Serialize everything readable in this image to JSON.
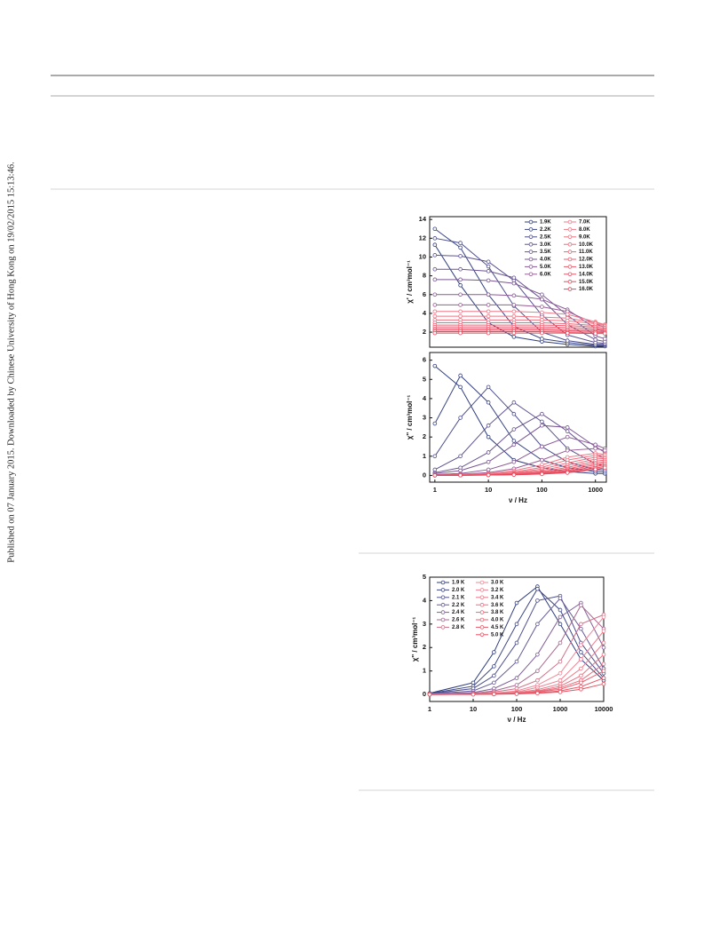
{
  "sidebar_note": "Published on 07 January 2015. Downloaded by Chinese University of Hong Kong on 19/02/2015 15:13:46.",
  "chart_data": [
    {
      "type": "line",
      "ylabel": "χ' / cm³mol⁻¹",
      "xscale": "log",
      "xlim": [
        0.8,
        1600
      ],
      "ylim": [
        0.4,
        14.3
      ],
      "yticks": [
        2,
        4,
        6,
        8,
        10,
        12,
        14
      ],
      "legend": "upper right",
      "x": [
        1,
        3,
        10,
        30,
        100,
        300,
        1000,
        1500
      ],
      "series": [
        {
          "name": "1.9K",
          "color": "#2e3c7e",
          "values": [
            11.3,
            7.0,
            3.0,
            1.5,
            1.0,
            0.7,
            0.5,
            0.5
          ]
        },
        {
          "name": "2.2K",
          "color": "#3a4585",
          "values": [
            13.0,
            11.0,
            6.0,
            2.6,
            1.3,
            0.9,
            0.6,
            0.6
          ]
        },
        {
          "name": "2.5K",
          "color": "#4a4d8c",
          "values": [
            12.0,
            11.5,
            9.0,
            4.8,
            2.0,
            1.1,
            0.7,
            0.7
          ]
        },
        {
          "name": "3.0K",
          "color": "#5a5290",
          "values": [
            10.2,
            10.1,
            9.5,
            7.5,
            3.8,
            1.7,
            0.9,
            0.8
          ]
        },
        {
          "name": "3.5K",
          "color": "#6a5592",
          "values": [
            8.7,
            8.7,
            8.5,
            7.8,
            5.5,
            2.8,
            1.2,
            1.0
          ]
        },
        {
          "name": "4.0K",
          "color": "#7a5794",
          "values": [
            7.6,
            7.6,
            7.5,
            7.2,
            6.0,
            3.8,
            1.6,
            1.3
          ]
        },
        {
          "name": "5.0K",
          "color": "#8a5a96",
          "values": [
            6.0,
            6.0,
            6.0,
            5.9,
            5.5,
            4.4,
            2.4,
            2.0
          ]
        },
        {
          "name": "6.0K",
          "color": "#9a5c96",
          "values": [
            4.9,
            4.9,
            4.9,
            4.9,
            4.7,
            4.2,
            2.9,
            2.5
          ]
        },
        {
          "name": "7.0K",
          "color": "#f07a8a",
          "values": [
            4.2,
            4.2,
            4.2,
            4.2,
            4.1,
            3.9,
            3.1,
            2.8
          ]
        },
        {
          "name": "8.0K",
          "color": "#f07585",
          "values": [
            3.7,
            3.7,
            3.7,
            3.7,
            3.6,
            3.5,
            3.0,
            2.8
          ]
        },
        {
          "name": "9.0K",
          "color": "#ef7080",
          "values": [
            3.3,
            3.3,
            3.3,
            3.3,
            3.3,
            3.2,
            2.9,
            2.7
          ]
        },
        {
          "name": "10.0K",
          "color": "#ee6a7b",
          "values": [
            3.0,
            3.0,
            3.0,
            3.0,
            3.0,
            2.9,
            2.7,
            2.6
          ]
        },
        {
          "name": "11.0K",
          "color": "#ed6476",
          "values": [
            2.75,
            2.75,
            2.75,
            2.75,
            2.75,
            2.7,
            2.55,
            2.45
          ]
        },
        {
          "name": "12.0K",
          "color": "#ec5e70",
          "values": [
            2.55,
            2.55,
            2.55,
            2.55,
            2.55,
            2.5,
            2.4,
            2.3
          ]
        },
        {
          "name": "13.0K",
          "color": "#eb586b",
          "values": [
            2.35,
            2.35,
            2.35,
            2.35,
            2.35,
            2.3,
            2.25,
            2.2
          ]
        },
        {
          "name": "14.0K",
          "color": "#ea5266",
          "values": [
            2.2,
            2.2,
            2.2,
            2.2,
            2.2,
            2.15,
            2.1,
            2.05
          ]
        },
        {
          "name": "15.0K",
          "color": "#e94c60",
          "values": [
            2.05,
            2.05,
            2.05,
            2.05,
            2.05,
            2.0,
            2.0,
            1.95
          ]
        },
        {
          "name": "16.0K",
          "color": "#e8465a",
          "values": [
            1.9,
            1.9,
            1.9,
            1.9,
            1.9,
            1.9,
            1.85,
            1.85
          ]
        }
      ]
    },
    {
      "type": "line",
      "ylabel": "χ'' / cm³mol⁻¹",
      "xlabel": "ν / Hz",
      "xscale": "log",
      "xlim": [
        0.8,
        1600
      ],
      "ylim": [
        -0.35,
        6.4
      ],
      "xticks": [
        1,
        10,
        100,
        1000
      ],
      "yticks": [
        0,
        1,
        2,
        3,
        4,
        5,
        6
      ],
      "x": [
        1,
        3,
        10,
        30,
        100,
        300,
        1000,
        1500
      ],
      "series": [
        {
          "color": "#2e3c7e",
          "values": [
            5.7,
            4.6,
            2.0,
            0.8,
            0.4,
            0.2,
            0.1,
            0.1
          ]
        },
        {
          "color": "#3a4585",
          "values": [
            2.7,
            5.2,
            3.8,
            1.8,
            0.8,
            0.4,
            0.2,
            0.2
          ]
        },
        {
          "color": "#4a4d8c",
          "values": [
            1.0,
            3.0,
            4.6,
            3.2,
            1.5,
            0.7,
            0.3,
            0.3
          ]
        },
        {
          "color": "#5a5290",
          "values": [
            0.3,
            1.0,
            2.6,
            3.8,
            2.8,
            1.4,
            0.6,
            0.5
          ]
        },
        {
          "color": "#6a5592",
          "values": [
            0.15,
            0.4,
            1.2,
            2.4,
            3.2,
            2.3,
            1.1,
            0.9
          ]
        },
        {
          "color": "#7a5794",
          "values": [
            0.1,
            0.25,
            0.7,
            1.6,
            2.6,
            2.5,
            1.5,
            1.2
          ]
        },
        {
          "color": "#8a5a96",
          "values": [
            0.05,
            0.1,
            0.3,
            0.7,
            1.5,
            2.0,
            1.6,
            1.4
          ]
        },
        {
          "color": "#9a5c96",
          "values": [
            0.03,
            0.06,
            0.15,
            0.35,
            0.8,
            1.3,
            1.4,
            1.3
          ]
        },
        {
          "color": "#f07a8a",
          "values": [
            0.02,
            0.04,
            0.1,
            0.25,
            0.55,
            0.95,
            1.15,
            1.1
          ]
        },
        {
          "color": "#f07585",
          "values": [
            0.02,
            0.03,
            0.08,
            0.18,
            0.42,
            0.8,
            1.05,
            1.05
          ]
        },
        {
          "color": "#ef7080",
          "values": [
            0.01,
            0.03,
            0.06,
            0.14,
            0.33,
            0.65,
            0.95,
            0.95
          ]
        },
        {
          "color": "#ee6a7b",
          "values": [
            0.01,
            0.02,
            0.05,
            0.11,
            0.26,
            0.52,
            0.85,
            0.88
          ]
        },
        {
          "color": "#ed6476",
          "values": [
            0.01,
            0.02,
            0.04,
            0.09,
            0.2,
            0.42,
            0.74,
            0.8
          ]
        },
        {
          "color": "#ec5e70",
          "values": [
            0.01,
            0.01,
            0.03,
            0.07,
            0.16,
            0.34,
            0.64,
            0.72
          ]
        },
        {
          "color": "#eb586b",
          "values": [
            0.01,
            0.01,
            0.03,
            0.06,
            0.13,
            0.27,
            0.55,
            0.63
          ]
        },
        {
          "color": "#ea5266",
          "values": [
            0,
            0.01,
            0.02,
            0.05,
            0.1,
            0.22,
            0.46,
            0.55
          ]
        },
        {
          "color": "#e94c60",
          "values": [
            0,
            0.01,
            0.02,
            0.04,
            0.08,
            0.18,
            0.38,
            0.47
          ]
        },
        {
          "color": "#e8465a",
          "values": [
            0,
            0.01,
            0.02,
            0.03,
            0.07,
            0.14,
            0.31,
            0.4
          ]
        }
      ]
    },
    {
      "type": "line",
      "ylabel": "χ'' / cm³mol⁻¹",
      "xlabel": "ν / Hz",
      "xscale": "log",
      "xlim": [
        1,
        10000
      ],
      "ylim": [
        -0.3,
        5
      ],
      "xticks": [
        1,
        10,
        100,
        1000,
        10000
      ],
      "yticks": [
        0,
        1,
        2,
        3,
        4,
        5
      ],
      "legend": "upper left",
      "x": [
        1,
        10,
        30,
        100,
        300,
        1000,
        3000,
        10000
      ],
      "series": [
        {
          "name": "1.9 K",
          "color": "#2e3c7e",
          "values": [
            0.05,
            0.5,
            1.8,
            3.9,
            4.6,
            3.0,
            1.5,
            0.6
          ]
        },
        {
          "name": "2.0 K",
          "color": "#3d4787",
          "values": [
            0.04,
            0.35,
            1.2,
            3.0,
            4.5,
            3.6,
            1.8,
            0.7
          ]
        },
        {
          "name": "2.1 K",
          "color": "#4f5190",
          "values": [
            0.03,
            0.25,
            0.8,
            2.2,
            4.0,
            4.2,
            2.2,
            0.9
          ]
        },
        {
          "name": "2.2 K",
          "color": "#655a96",
          "values": [
            0.02,
            0.15,
            0.5,
            1.4,
            3.0,
            4.1,
            2.8,
            1.1
          ]
        },
        {
          "name": "2.4 K",
          "color": "#7e5f98",
          "values": [
            0.02,
            0.08,
            0.25,
            0.7,
            1.7,
            3.3,
            3.9,
            2.0
          ]
        },
        {
          "name": "2.6 K",
          "color": "#a86890",
          "values": [
            0.01,
            0.05,
            0.15,
            0.4,
            1.0,
            2.2,
            3.8,
            2.8
          ]
        },
        {
          "name": "2.8 K",
          "color": "#d07088",
          "values": [
            0.01,
            0.03,
            0.1,
            0.25,
            0.6,
            1.4,
            3.0,
            3.4
          ]
        },
        {
          "name": "3.0 K",
          "color": "#f08898",
          "values": [
            0.01,
            0.02,
            0.06,
            0.15,
            0.4,
            0.9,
            2.1,
            3.3
          ]
        },
        {
          "name": "3.2 K",
          "color": "#ee8090",
          "values": [
            0.01,
            0.02,
            0.05,
            0.1,
            0.3,
            0.6,
            1.5,
            2.7
          ]
        },
        {
          "name": "3.4 K",
          "color": "#ed7888",
          "values": [
            0.01,
            0.01,
            0.04,
            0.08,
            0.2,
            0.45,
            1.1,
            2.2
          ]
        },
        {
          "name": "3.6 K",
          "color": "#ec7080",
          "values": [
            0,
            0.01,
            0.03,
            0.06,
            0.15,
            0.35,
            0.8,
            1.7
          ]
        },
        {
          "name": "3.8 K",
          "color": "#eb6878",
          "values": [
            0,
            0.01,
            0.02,
            0.05,
            0.12,
            0.28,
            0.6,
            1.3
          ]
        },
        {
          "name": "4.0 K",
          "color": "#ea6070",
          "values": [
            0,
            0.01,
            0.02,
            0.04,
            0.1,
            0.22,
            0.5,
            1.0
          ]
        },
        {
          "name": "4.5 K",
          "color": "#e95868",
          "values": [
            0,
            0.01,
            0.01,
            0.03,
            0.07,
            0.15,
            0.33,
            0.7
          ]
        },
        {
          "name": "5.0 K",
          "color": "#e8505f",
          "values": [
            0,
            0,
            0.01,
            0.02,
            0.05,
            0.1,
            0.22,
            0.45
          ]
        }
      ]
    }
  ]
}
